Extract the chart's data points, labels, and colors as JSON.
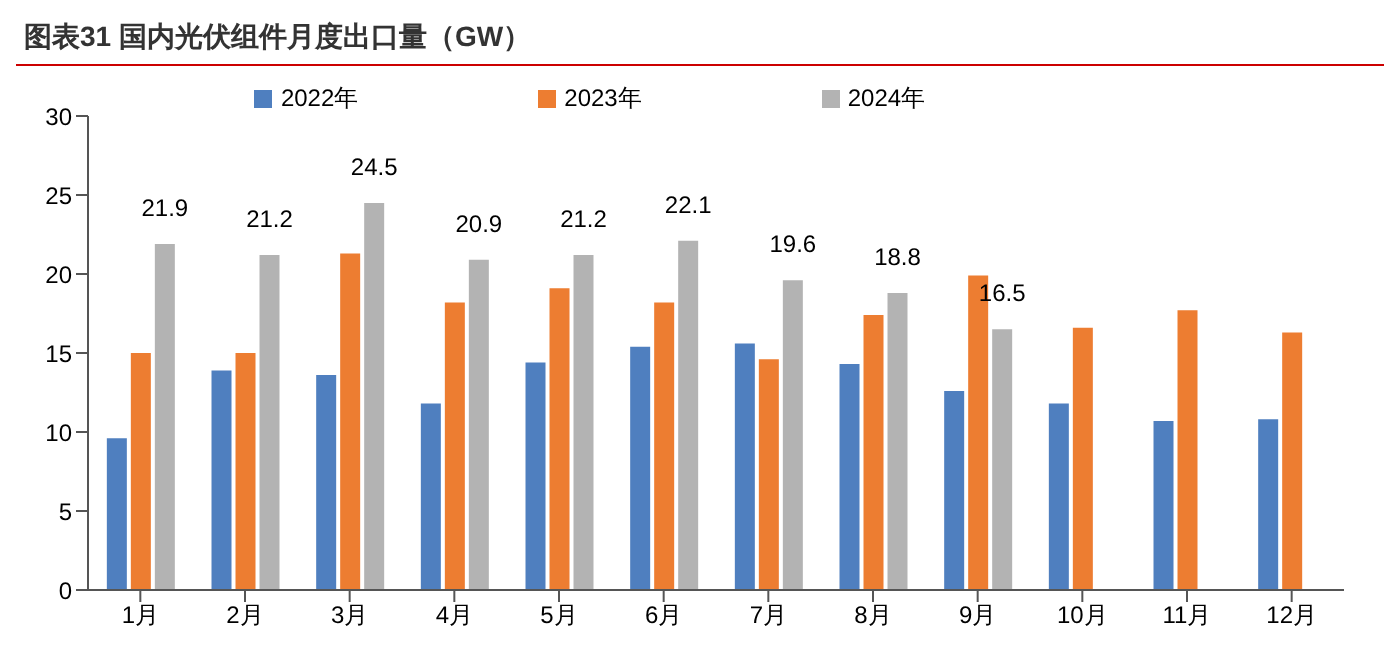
{
  "chart_data": {
    "type": "bar",
    "title": "图表31   国内光伏组件月度出口量（GW）",
    "categories": [
      "1月",
      "2月",
      "3月",
      "4月",
      "5月",
      "6月",
      "7月",
      "8月",
      "9月",
      "10月",
      "11月",
      "12月"
    ],
    "series": [
      {
        "name": "2022年",
        "color": "#4f7fbf",
        "values": [
          9.6,
          13.9,
          13.6,
          11.8,
          14.4,
          15.4,
          15.6,
          14.3,
          12.6,
          11.8,
          10.7,
          10.8
        ]
      },
      {
        "name": "2023年",
        "color": "#ed7d31",
        "values": [
          15.0,
          15.0,
          21.3,
          18.2,
          19.1,
          18.2,
          14.6,
          17.4,
          19.9,
          16.6,
          17.7,
          16.3
        ]
      },
      {
        "name": "2024年",
        "color": "#b3b3b3",
        "values": [
          21.9,
          21.2,
          24.5,
          20.9,
          21.2,
          22.1,
          19.6,
          18.8,
          16.5,
          null,
          null,
          null
        ],
        "value_labels": [
          "21.9",
          "21.2",
          "24.5",
          "20.9",
          "21.2",
          "22.1",
          "19.6",
          "18.8",
          "16.5",
          null,
          null,
          null
        ]
      }
    ],
    "ylim": [
      0,
      30
    ],
    "yticks": [
      0,
      5,
      10,
      15,
      20,
      25,
      30
    ],
    "grid": false,
    "legend": "top"
  }
}
